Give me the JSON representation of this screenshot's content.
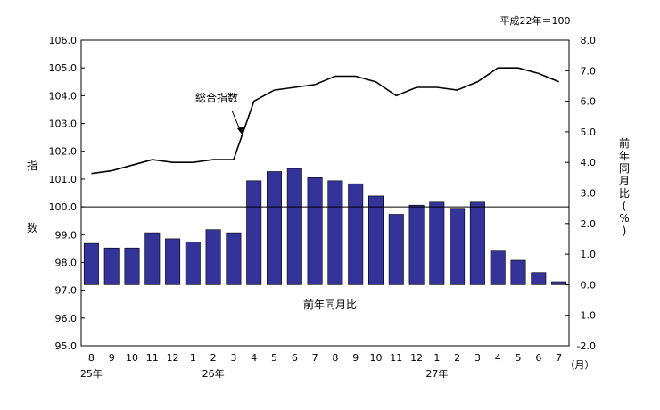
{
  "chart_data": {
    "type": "bar+line",
    "note": "平成22年＝100",
    "left_axis": {
      "label": "指数",
      "ylim": [
        95.0,
        106.0
      ],
      "ticks": [
        "95.0",
        "96.0",
        "97.0",
        "98.0",
        "99.0",
        "100.0",
        "101.0",
        "102.0",
        "103.0",
        "104.0",
        "105.0",
        "106.0"
      ]
    },
    "right_axis": {
      "label": "前年同月比(%)",
      "ylim": [
        -2.0,
        8.0
      ],
      "ticks": [
        "-2.0",
        "-1.0",
        "0.0",
        "1.0",
        "2.0",
        "3.0",
        "4.0",
        "5.0",
        "6.0",
        "7.0",
        "8.0"
      ]
    },
    "categories": [
      "8",
      "9",
      "10",
      "11",
      "12",
      "1",
      "2",
      "3",
      "4",
      "5",
      "6",
      "7",
      "8",
      "9",
      "10",
      "11",
      "12",
      "1",
      "2",
      "3",
      "4",
      "5",
      "6",
      "7"
    ],
    "year_labels": [
      {
        "index": 0,
        "text": "25年"
      },
      {
        "index": 6,
        "text": "26年"
      },
      {
        "index": 17,
        "text": "27年"
      }
    ],
    "x_unit": "（月）",
    "series": [
      {
        "name": "総合指数",
        "type": "line",
        "axis": "left",
        "color": "#000000",
        "values": [
          101.2,
          101.3,
          101.5,
          101.7,
          101.6,
          101.6,
          101.7,
          101.7,
          103.8,
          104.2,
          104.3,
          104.4,
          104.7,
          104.7,
          104.5,
          104.0,
          104.3,
          104.3,
          104.2,
          104.5,
          105.0,
          105.0,
          104.8,
          104.5
        ]
      },
      {
        "name": "前年同月比",
        "type": "bar",
        "axis": "right",
        "color": "#333399",
        "values": [
          1.35,
          1.2,
          1.2,
          1.7,
          1.5,
          1.4,
          1.8,
          1.7,
          3.4,
          3.7,
          3.8,
          3.5,
          3.4,
          3.3,
          2.9,
          2.3,
          2.6,
          2.7,
          2.5,
          2.7,
          1.1,
          0.8,
          0.4,
          0.1
        ]
      }
    ],
    "reference_line": {
      "axis": "left",
      "value": 100.0
    }
  }
}
